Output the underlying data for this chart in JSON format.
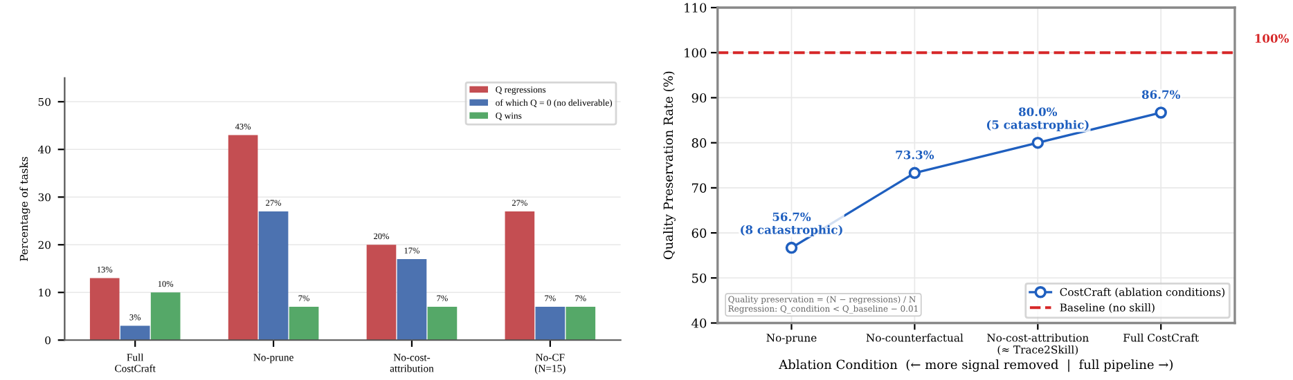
{
  "chart_data": [
    {
      "type": "bar",
      "ylabel": "Percentage of tasks",
      "categories": [
        "Full\nCostCraft",
        "No-prune",
        "No-cost-\nattribution",
        "No-CF\n(N=15)"
      ],
      "series": [
        {
          "name": "Q regressions",
          "color": "#c44e52",
          "values": [
            13,
            43,
            20,
            27
          ],
          "value_labels": [
            "13%",
            "43%",
            "20%",
            "27%"
          ]
        },
        {
          "name": "of which Q = 0 (no deliverable)",
          "color": "#4c72b0",
          "values": [
            3,
            27,
            17,
            7
          ],
          "value_labels": [
            "3%",
            "27%",
            "17%",
            "7%"
          ]
        },
        {
          "name": "Q wins",
          "color": "#55a868",
          "values": [
            10,
            7,
            7,
            7
          ],
          "value_labels": [
            "10%",
            "7%",
            "7%",
            "7%"
          ]
        }
      ],
      "ylim": [
        0,
        55
      ],
      "yticks": [
        0,
        10,
        20,
        30,
        40,
        50
      ],
      "grid": "y",
      "legend": "top right"
    },
    {
      "type": "line",
      "xlabel": "Ablation Condition  (← more signal removed  |  full pipeline →)",
      "ylabel": "Quality Preservation Rate (%)",
      "categories": [
        "No-prune",
        "No-counterfactual",
        "No-cost-attribution\n(≈ Trace2Skill)",
        "Full CostCraft"
      ],
      "series": [
        {
          "name": "CostCraft (ablation conditions)",
          "color": "#1f5fbf",
          "values": [
            56.7,
            73.3,
            80.0,
            86.7
          ],
          "value_labels": [
            "56.7%\n(8 catastrophic)",
            "73.3%",
            "80.0%\n(5 catastrophic)",
            "86.7%"
          ]
        }
      ],
      "marker": "circle",
      "line_style": "solid",
      "ref_lines": [
        {
          "axis": "y",
          "value": 100,
          "label": "Baseline (no skill)",
          "color": "#d62728",
          "line_style": "dashed"
        }
      ],
      "annotations": [
        "100%",
        "Quality preservation = (N − regressions) / N\nRegression: Q_condition < Q_baseline − 0.01"
      ],
      "ylim": [
        40,
        110
      ],
      "yticks": [
        40,
        50,
        60,
        70,
        80,
        90,
        100,
        110
      ],
      "grid": true,
      "legend": "bottom right"
    }
  ]
}
